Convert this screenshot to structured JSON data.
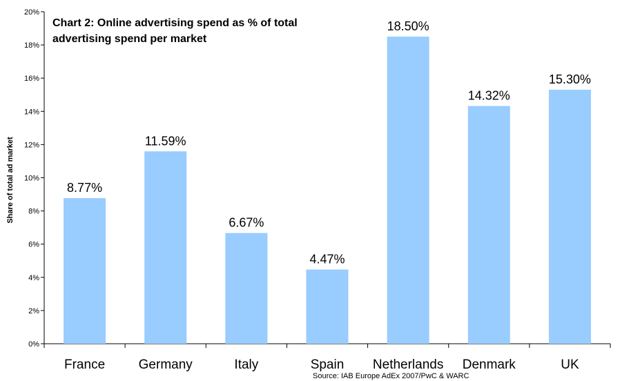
{
  "chart_data": {
    "type": "bar",
    "title_lines": [
      "Chart 2: Online advertising spend as % of total",
      "advertising spend per market"
    ],
    "ylabel": "Share of total ad market",
    "xlabel": "",
    "categories": [
      "France",
      "Germany",
      "Italy",
      "Spain",
      "Netherlands",
      "Denmark",
      "UK"
    ],
    "values": [
      8.77,
      11.59,
      6.67,
      4.47,
      18.5,
      14.32,
      15.3
    ],
    "data_labels": [
      "8.77%",
      "11.59%",
      "6.67%",
      "4.47%",
      "18.50%",
      "14.32%",
      "15.30%"
    ],
    "ylim": [
      0,
      20
    ],
    "yticks": [
      0,
      2,
      4,
      6,
      8,
      10,
      12,
      14,
      16,
      18,
      20
    ],
    "ytick_labels": [
      "0%",
      "2%",
      "4%",
      "6%",
      "8%",
      "10%",
      "12%",
      "14%",
      "16%",
      "18%",
      "20%"
    ],
    "grid": false,
    "legend": "none",
    "bar_color": "#99ccff",
    "source": "Source: IAB Europe AdEx 2007/PwC & WARC"
  }
}
